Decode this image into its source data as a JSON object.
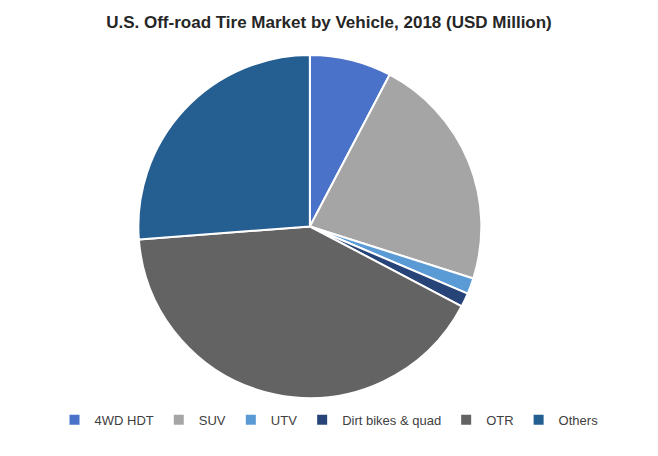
{
  "chart_data": {
    "type": "pie",
    "title": "U.S. Off-road Tire Market by Vehicle, 2018 (USD Million)",
    "categories": [
      "4WD HDT",
      "SUV",
      "UTV",
      "Dirt bikes & quad",
      "OTR",
      "Others"
    ],
    "values": [
      7.7,
      22.2,
      1.5,
      1.3,
      41.1,
      26.2
    ],
    "colors": [
      "#4a72c9",
      "#a5a5a5",
      "#5b9bd5",
      "#264478",
      "#636363",
      "#255e91"
    ],
    "legend": "bottom",
    "data_labels": false
  }
}
